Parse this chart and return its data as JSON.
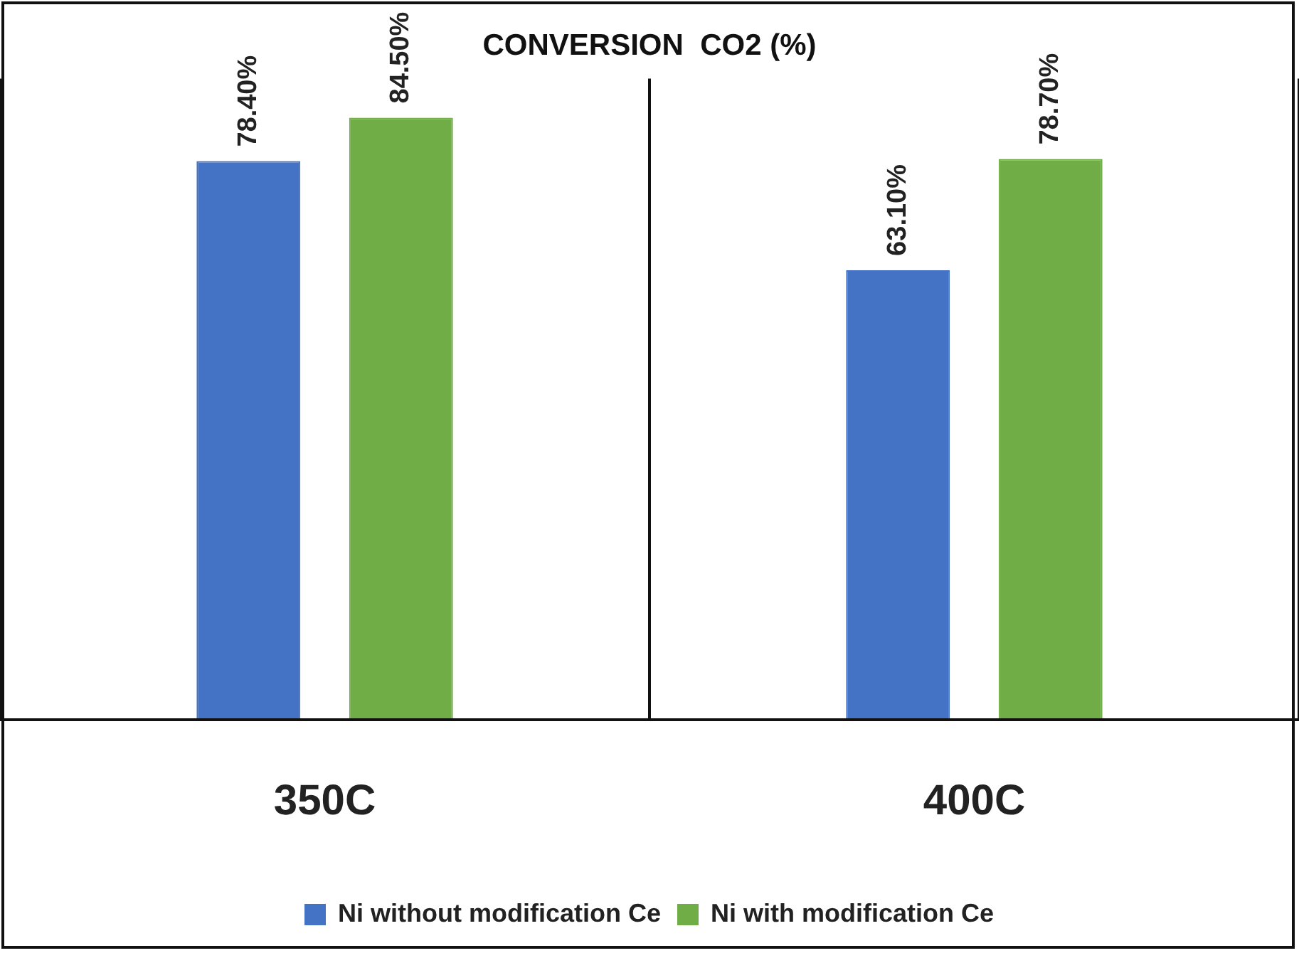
{
  "chart_data": {
    "type": "bar",
    "title": "CONVERSION  CO2 (%)",
    "categories": [
      "350C",
      "400C"
    ],
    "series": [
      {
        "name": "Ni without modification Ce",
        "color": "#4472c4",
        "values": [
          78.4,
          63.1
        ],
        "value_labels": [
          "78.40%",
          "63.10%"
        ]
      },
      {
        "name": "Ni with modification Ce",
        "color": "#70ad47",
        "values": [
          84.5,
          78.7
        ],
        "value_labels": [
          "84.50%",
          "78.70%"
        ]
      }
    ],
    "grid": "x",
    "legend": "bottom"
  }
}
